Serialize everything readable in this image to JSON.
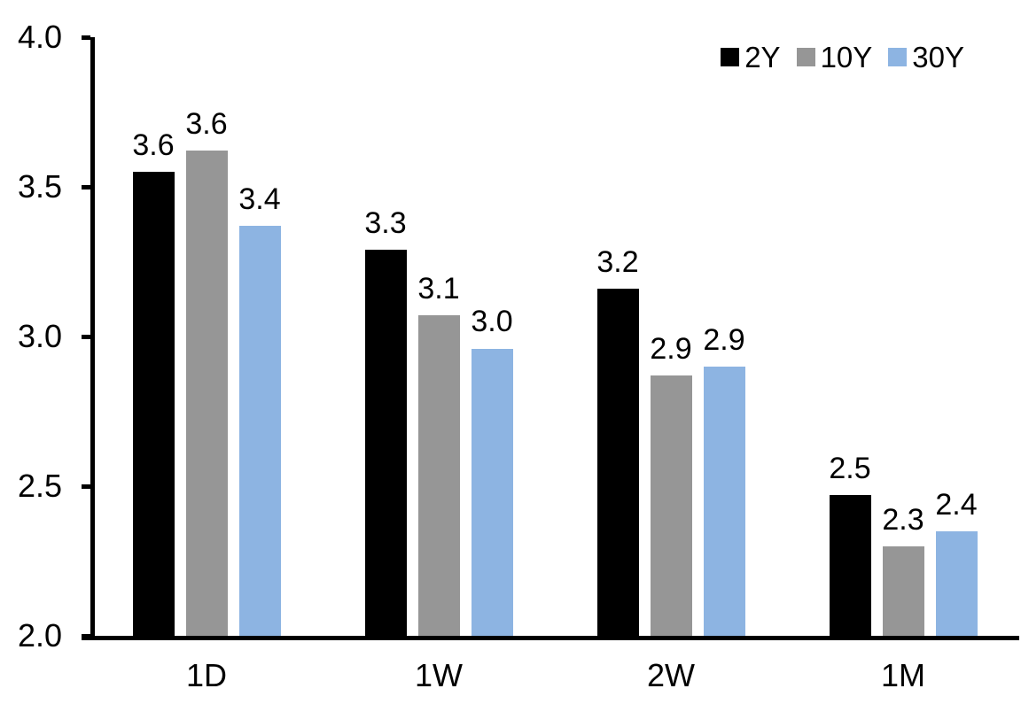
{
  "chart_data": {
    "type": "bar",
    "title": "",
    "categories": [
      "1D",
      "1W",
      "2W",
      "1M"
    ],
    "series": [
      {
        "name": "2Y",
        "color": "#000000",
        "values": [
          3.55,
          3.29,
          3.16,
          2.47
        ],
        "data_labels": [
          "3.6",
          "3.3",
          "3.2",
          "2.5"
        ]
      },
      {
        "name": "10Y",
        "color": "#969696",
        "values": [
          3.62,
          3.07,
          2.87,
          2.3
        ],
        "data_labels": [
          "3.6",
          "3.1",
          "2.9",
          "2.3"
        ]
      },
      {
        "name": "30Y",
        "color": "#8DB4E2",
        "values": [
          3.37,
          2.96,
          2.9,
          2.35
        ],
        "data_labels": [
          "3.4",
          "3.0",
          "2.9",
          "2.4"
        ]
      }
    ],
    "y_axis": {
      "min": 2.0,
      "max": 4.0,
      "tick_step": 0.5,
      "tick_labels": [
        "2.0",
        "2.5",
        "3.0",
        "3.5",
        "4.0"
      ]
    },
    "x_axis": {
      "labels": [
        "1D",
        "1W",
        "2W",
        "1M"
      ]
    },
    "legend": {
      "position": "top-right",
      "entries": [
        "2Y",
        "10Y",
        "30Y"
      ]
    },
    "grid": false,
    "background_color": "#ffffff",
    "axis_color": "#000000"
  }
}
